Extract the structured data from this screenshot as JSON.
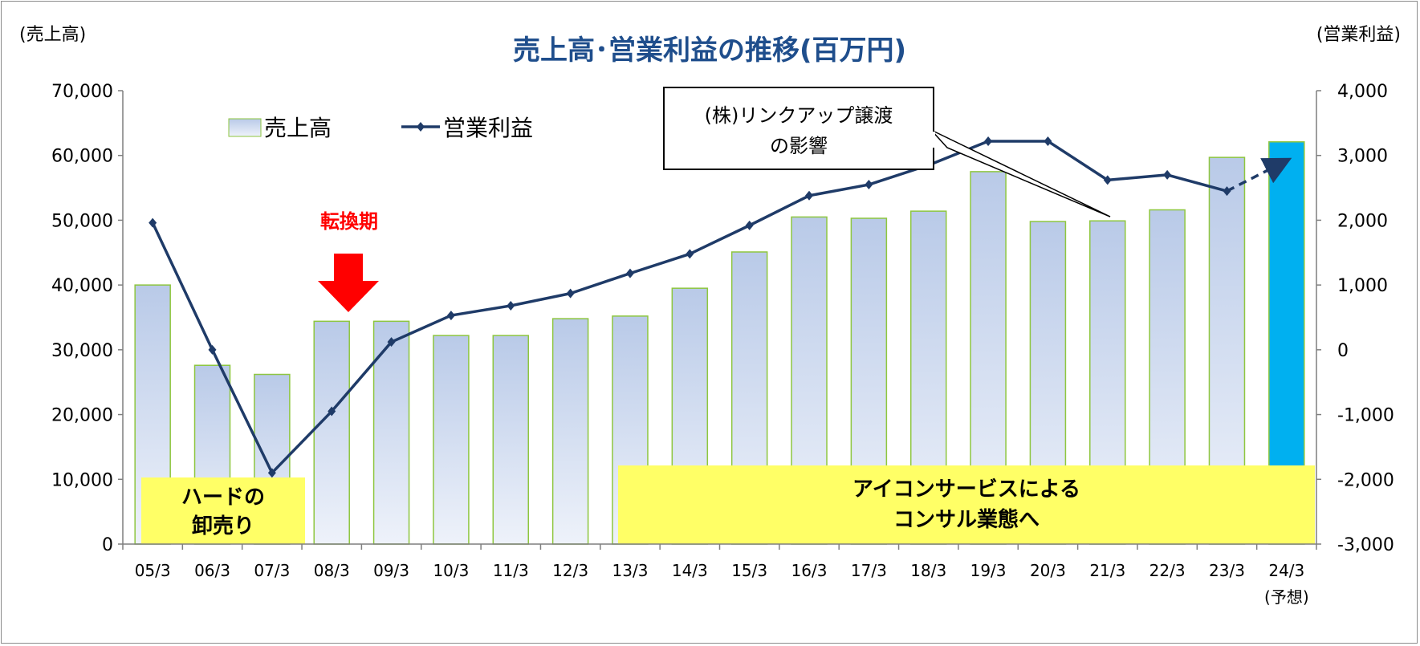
{
  "chart_data": {
    "type": "bar",
    "title": "売上高･営業利益の推移(百万円)",
    "left_axis_label": "(売上高)",
    "right_axis_label": "(営業利益)",
    "categories": [
      "05/3",
      "06/3",
      "07/3",
      "08/3",
      "09/3",
      "10/3",
      "11/3",
      "12/3",
      "13/3",
      "14/3",
      "15/3",
      "16/3",
      "17/3",
      "18/3",
      "19/3",
      "20/3",
      "21/3",
      "22/3",
      "23/3",
      "24/3"
    ],
    "last_category_sub": "(予想)",
    "left_axis": {
      "min": 0,
      "max": 70000,
      "step": 10000,
      "ticks": [
        "0",
        "10,000",
        "20,000",
        "30,000",
        "40,000",
        "50,000",
        "60,000",
        "70,000"
      ]
    },
    "right_axis": {
      "min": -3000,
      "max": 4000,
      "step": 1000,
      "ticks": [
        "-3,000",
        "-2,000",
        "-1,000",
        "0",
        "1,000",
        "2,000",
        "3,000",
        "4,000"
      ]
    },
    "series": [
      {
        "name": "売上高",
        "kind": "bar",
        "axis": "left",
        "values": [
          40000,
          27600,
          26200,
          34400,
          34400,
          32200,
          32200,
          34800,
          35200,
          39500,
          45100,
          50500,
          50300,
          51400,
          57500,
          49800,
          49900,
          51600,
          59700,
          62100
        ]
      },
      {
        "name": "営業利益",
        "kind": "line",
        "axis": "right",
        "values": [
          1960,
          0,
          -1900,
          -950,
          120,
          530,
          680,
          870,
          1180,
          1480,
          1920,
          2380,
          2550,
          2850,
          3220,
          3220,
          2620,
          2700,
          2450,
          2920
        ],
        "forecast_from_index": 18
      }
    ],
    "colors": {
      "bar_top": "#b9cae8",
      "bar_bottom": "#eef2fa",
      "bar_border": "#8ec63f",
      "forecast_bar": "#00b0f0",
      "line": "#1f3b68",
      "title": "#1f4e8c",
      "negative_ticks": "#ff0000",
      "note_box": "#ffff66",
      "arrow": "#ff0000"
    },
    "annotations": {
      "hard_box": [
        "ハードの",
        "卸売り"
      ],
      "consult_box": [
        "アイコンサービスによる",
        "コンサル業態へ"
      ],
      "turning_point": "転換期",
      "callout": [
        "(株)リンクアップ譲渡",
        "の影響"
      ]
    },
    "legend_position": "top-left"
  }
}
